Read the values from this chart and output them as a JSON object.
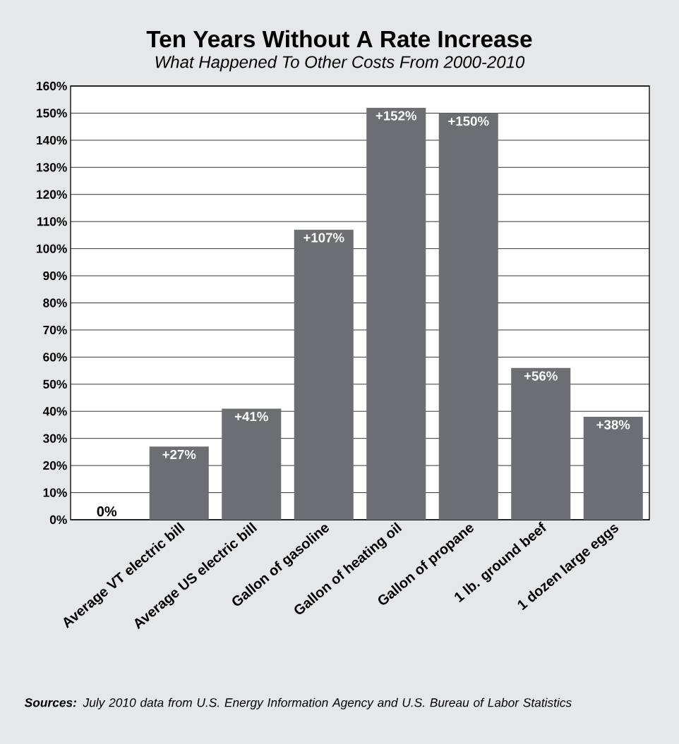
{
  "chart_data": {
    "type": "bar",
    "title": "Ten Years Without A Rate Increase",
    "subtitle": "What Happened To Other Costs From 2000-2010",
    "categories": [
      null,
      "Average VT electric bill",
      "Average US electric bill",
      "Gallon of gasoline",
      "Gallon of heating oil",
      "Gallon of propane",
      "1 lb. ground beef",
      "1 dozen large eggs"
    ],
    "values": [
      0,
      27,
      41,
      107,
      152,
      150,
      56,
      38
    ],
    "value_labels": [
      "0%",
      "+27%",
      "+41%",
      "+107%",
      "+152%",
      "+150%",
      "+56%",
      "+38%"
    ],
    "color": "#6d6e71",
    "ylim": [
      0,
      160
    ],
    "yticks": [
      {
        "value": 0,
        "label": "0%"
      },
      {
        "value": 10,
        "label": "10%"
      },
      {
        "value": 20,
        "label": "20%"
      },
      {
        "value": 30,
        "label": "30%"
      },
      {
        "value": 40,
        "label": "40%"
      },
      {
        "value": 50,
        "label": "50%"
      },
      {
        "value": 60,
        "label": "60%"
      },
      {
        "value": 70,
        "label": "70%"
      },
      {
        "value": 80,
        "label": "80%"
      },
      {
        "value": 90,
        "label": "90%"
      },
      {
        "value": 100,
        "label": "100%"
      },
      {
        "value": 110,
        "label": "110%"
      },
      {
        "value": 120,
        "label": "120%"
      },
      {
        "value": 130,
        "label": "130%"
      },
      {
        "value": 140,
        "label": "140%"
      },
      {
        "value": 150,
        "label": "150%"
      },
      {
        "value": 160,
        "label": "160%"
      }
    ],
    "grid": "y",
    "annotations": [
      "**Sources:** July 2010 data from U.S. Energy Information Agency and U.S. Bureau of Labor Statistics"
    ]
  }
}
